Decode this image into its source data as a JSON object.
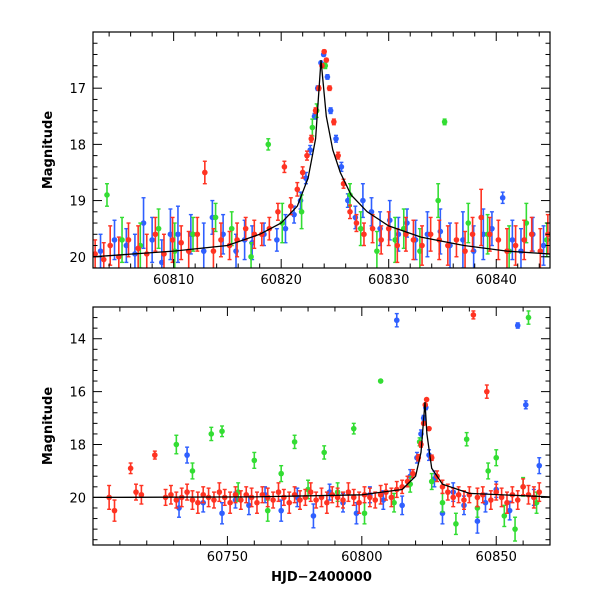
{
  "chart_data": [
    {
      "type": "scatter",
      "panel": "top",
      "xlabel": "",
      "ylabel": "Magnitude",
      "xlim": [
        60802.5,
        60845
      ],
      "ylim": [
        20.2,
        16.0
      ],
      "y_inverted": true,
      "x_ticks": [
        60810,
        60820,
        60830,
        60840
      ],
      "x_tick_labels": [
        "60810",
        "60820",
        "60830",
        "60840"
      ],
      "y_ticks": [
        17,
        18,
        19,
        20
      ],
      "y_tick_labels": [
        "17",
        "18",
        "19",
        "20"
      ],
      "model_curve": {
        "color": "#000000",
        "x": [
          60802.5,
          60810,
          60815,
          60818,
          60820,
          60821.5,
          60822.5,
          60823.2,
          60823.7,
          60824.2,
          60824.8,
          60825.5,
          60826.5,
          60828,
          60830,
          60833,
          60837,
          60841,
          60845
        ],
        "y": [
          20.0,
          19.9,
          19.8,
          19.6,
          19.4,
          19.1,
          18.6,
          17.9,
          16.5,
          17.5,
          18.1,
          18.5,
          18.9,
          19.2,
          19.45,
          19.65,
          19.8,
          19.9,
          19.95
        ]
      },
      "series": [
        {
          "color": "#2f5fff",
          "x": [
            60803.2,
            60804.5,
            60805.6,
            60806.4,
            60807.2,
            60808.0,
            60808.9,
            60809.7,
            60810.4,
            60811.6,
            60812.8,
            60813.6,
            60814.6,
            60815.8,
            60816.6,
            60817.3,
            60818.4,
            60819.6,
            60820.4,
            60821.2,
            60821.8,
            60822.3,
            60822.7,
            60823.1,
            60823.4,
            60823.7,
            60823.95,
            60824.3,
            60824.6,
            60825.1,
            60825.6,
            60826.2,
            60826.9,
            60827.6,
            60828.4,
            60829.2,
            60830.1,
            60830.9,
            60831.7,
            60832.5,
            60833.6,
            60834.8,
            60835.7,
            60836.9,
            60837.9,
            60838.8,
            60839.6,
            60840.6,
            60841.5,
            60842.3,
            60843.4,
            60844.4
          ],
          "y": [
            19.9,
            19.7,
            19.8,
            19.95,
            19.4,
            19.7,
            20.1,
            19.6,
            19.6,
            19.6,
            19.9,
            19.3,
            19.6,
            19.9,
            19.7,
            19.75,
            19.6,
            19.7,
            19.5,
            19.25,
            19.0,
            18.6,
            18.1,
            17.5,
            17.0,
            16.55,
            16.4,
            16.8,
            17.4,
            17.9,
            18.4,
            19.0,
            19.3,
            19.0,
            19.2,
            19.5,
            19.35,
            19.6,
            19.4,
            19.7,
            19.6,
            19.55,
            19.8,
            19.7,
            19.9,
            19.6,
            19.5,
            18.95,
            19.7,
            19.9,
            19.6,
            19.8
          ],
          "yerr": [
            0.3,
            0.35,
            0.3,
            0.35,
            0.45,
            0.4,
            0.4,
            0.45,
            0.5,
            0.35,
            0.5,
            0.3,
            0.35,
            0.3,
            0.35,
            0.3,
            0.2,
            0.2,
            0.25,
            0.15,
            0.15,
            0.1,
            0.08,
            0.05,
            0.04,
            0.03,
            0.03,
            0.04,
            0.05,
            0.06,
            0.08,
            0.12,
            0.2,
            0.3,
            0.25,
            0.3,
            0.35,
            0.3,
            0.25,
            0.35,
            0.4,
            0.4,
            0.4,
            0.5,
            0.45,
            0.45,
            0.3,
            0.1,
            0.35,
            0.4,
            0.3,
            0.35
          ]
        },
        {
          "color": "#33dd33",
          "x": [
            60803.8,
            60805.2,
            60806.9,
            60808.6,
            60810.1,
            60811.8,
            60813.9,
            60815.4,
            60817.2,
            60818.8,
            60820.1,
            60821.9,
            60822.9,
            60823.3,
            60824.1,
            60826.4,
            60827.4,
            60828.9,
            60830.6,
            60831.4,
            60832.9,
            60834.6,
            60835.2,
            60837.4,
            60839.2,
            60841.2,
            60842.8,
            60844.7
          ],
          "y": [
            18.9,
            19.7,
            19.8,
            19.5,
            19.9,
            19.6,
            19.3,
            19.5,
            20.0,
            18.0,
            19.4,
            19.2,
            17.7,
            17.4,
            16.6,
            18.9,
            19.5,
            19.9,
            19.7,
            19.5,
            19.9,
            19.0,
            17.6,
            19.4,
            19.6,
            19.9,
            19.4,
            19.7
          ],
          "yerr": [
            0.2,
            0.4,
            0.4,
            0.35,
            0.5,
            0.3,
            0.25,
            0.3,
            0.25,
            0.1,
            0.35,
            0.3,
            0.15,
            0.12,
            0.05,
            0.2,
            0.3,
            0.35,
            0.4,
            0.35,
            0.4,
            0.3,
            0.05,
            0.35,
            0.35,
            0.45,
            0.35,
            0.3
          ]
        },
        {
          "color": "#ff3322",
          "x": [
            60802.7,
            60803.5,
            60804.1,
            60804.9,
            60805.8,
            60806.7,
            60807.5,
            60808.3,
            60809.1,
            60809.9,
            60810.7,
            60811.4,
            60812.2,
            60812.9,
            60813.7,
            60814.4,
            60815.2,
            60815.9,
            60816.7,
            60817.5,
            60818.2,
            60818.9,
            60819.7,
            60820.3,
            60820.9,
            60821.5,
            60822.0,
            60822.4,
            60822.8,
            60823.2,
            60823.5,
            60823.8,
            60824.0,
            60824.2,
            60824.5,
            60824.9,
            60825.3,
            60825.8,
            60826.4,
            60827.0,
            60827.7,
            60828.5,
            60829.3,
            60830.0,
            60830.8,
            60831.6,
            60832.3,
            60833.1,
            60833.9,
            60834.7,
            60835.5,
            60836.3,
            60837.1,
            60837.8,
            60838.6,
            60839.4,
            60840.2,
            60841.0,
            60841.8,
            60842.6,
            60843.3,
            60844.1,
            60844.8
          ],
          "y": [
            19.95,
            20.05,
            19.8,
            20.0,
            19.7,
            19.85,
            19.95,
            19.6,
            19.95,
            19.7,
            19.75,
            19.9,
            19.6,
            18.5,
            19.9,
            19.7,
            19.8,
            19.7,
            19.5,
            19.6,
            19.6,
            19.5,
            19.2,
            18.4,
            19.1,
            18.8,
            18.5,
            18.2,
            17.9,
            17.4,
            17.0,
            16.6,
            16.35,
            16.5,
            17.0,
            17.6,
            18.2,
            18.7,
            19.2,
            19.4,
            19.6,
            19.5,
            19.7,
            19.5,
            19.8,
            19.6,
            19.7,
            19.8,
            19.6,
            19.7,
            19.8,
            19.7,
            19.9,
            19.6,
            19.3,
            19.6,
            19.7,
            19.9,
            19.8,
            19.7,
            19.6,
            19.9,
            19.6
          ],
          "yerr": [
            0.25,
            0.3,
            0.35,
            0.35,
            0.3,
            0.4,
            0.35,
            0.3,
            0.35,
            0.4,
            0.3,
            0.35,
            0.3,
            0.2,
            0.4,
            0.3,
            0.25,
            0.3,
            0.2,
            0.25,
            0.2,
            0.2,
            0.15,
            0.1,
            0.15,
            0.12,
            0.1,
            0.08,
            0.06,
            0.05,
            0.04,
            0.03,
            0.03,
            0.03,
            0.04,
            0.05,
            0.06,
            0.08,
            0.12,
            0.15,
            0.2,
            0.25,
            0.25,
            0.3,
            0.3,
            0.3,
            0.35,
            0.35,
            0.3,
            0.35,
            0.35,
            0.3,
            0.35,
            0.3,
            0.5,
            0.3,
            0.35,
            0.4,
            0.35,
            0.35,
            0.3,
            0.4,
            0.35
          ]
        }
      ]
    },
    {
      "type": "scatter",
      "panel": "bottom",
      "xlabel": "HJD−2400000",
      "ylabel": "Magnitude",
      "xlim": [
        60700,
        60870
      ],
      "ylim": [
        21.8,
        12.8
      ],
      "y_inverted": true,
      "x_ticks": [
        60750,
        60800,
        60850
      ],
      "x_tick_labels": [
        "60750",
        "60800",
        "60850"
      ],
      "y_ticks": [
        14,
        16,
        18,
        20
      ],
      "y_tick_labels": [
        "14",
        "16",
        "18",
        "20"
      ],
      "model_curve": {
        "color": "#000000",
        "x": [
          60700,
          60760,
          60800,
          60815,
          60820,
          60822,
          60823.5,
          60824.2,
          60826,
          60830,
          60840,
          60870
        ],
        "y": [
          20.0,
          19.98,
          19.9,
          19.7,
          19.2,
          18.3,
          16.4,
          17.6,
          18.9,
          19.5,
          19.85,
          19.98
        ]
      },
      "series": [
        {
          "color": "#2f5fff",
          "x": [
            60732,
            60735,
            60741,
            60748,
            60753,
            60758,
            60764,
            60770,
            60776,
            60782,
            60788,
            60793,
            60798,
            60803,
            60808,
            60813,
            60815,
            60818,
            60820.5,
            60822,
            60823,
            60823.8,
            60825,
            60827,
            60830,
            60834,
            60838,
            60843,
            60846,
            60850,
            60855,
            60858,
            60861,
            60864,
            60866
          ],
          "y": [
            20.4,
            18.4,
            20.2,
            20.6,
            20.1,
            20.3,
            19.9,
            20.5,
            20.0,
            20.7,
            19.8,
            20.2,
            20.6,
            19.9,
            20.1,
            13.3,
            20.3,
            19.2,
            18.5,
            17.6,
            17.0,
            16.6,
            18.4,
            19.3,
            20.6,
            19.8,
            20.3,
            20.9,
            20.2,
            19.7,
            20.5,
            13.5,
            16.5,
            20.0,
            18.8
          ],
          "yerr": [
            0.35,
            0.3,
            0.35,
            0.4,
            0.3,
            0.35,
            0.3,
            0.4,
            0.35,
            0.45,
            0.3,
            0.35,
            0.4,
            0.3,
            0.35,
            0.25,
            0.35,
            0.25,
            0.2,
            0.15,
            0.1,
            0.08,
            0.2,
            0.3,
            0.4,
            0.35,
            0.35,
            0.45,
            0.35,
            0.3,
            0.35,
            0.1,
            0.15,
            0.3,
            0.3
          ]
        },
        {
          "color": "#33dd33",
          "x": [
            60731,
            60737,
            60744,
            60748,
            60754,
            60760,
            60765,
            60770,
            60775,
            60780,
            60786,
            60791,
            60797,
            60801,
            60807,
            60812,
            60818,
            60821.5,
            60826,
            60830,
            60835,
            60839,
            60843,
            60847,
            60850,
            60853,
            60857,
            60860,
            60862,
            60865
          ],
          "y": [
            18.0,
            19.0,
            17.6,
            17.5,
            19.8,
            18.6,
            20.5,
            19.1,
            17.9,
            19.7,
            18.3,
            19.8,
            17.4,
            20.6,
            15.6,
            20.2,
            19.5,
            17.9,
            19.4,
            20.2,
            21.0,
            17.8,
            20.4,
            19.0,
            18.5,
            20.7,
            21.2,
            19.6,
            13.2,
            20.2
          ],
          "yerr": [
            0.35,
            0.3,
            0.25,
            0.2,
            0.35,
            0.3,
            0.4,
            0.3,
            0.25,
            0.35,
            0.25,
            0.35,
            0.2,
            0.4,
            0.05,
            0.35,
            0.3,
            0.15,
            0.3,
            0.35,
            0.4,
            0.25,
            0.35,
            0.3,
            0.3,
            0.4,
            0.45,
            0.35,
            0.25,
            0.4
          ]
        },
        {
          "color": "#ff3322",
          "x": [
            60706,
            60708,
            60714,
            60716,
            60718,
            60723,
            60727,
            60729,
            60731,
            60733,
            60735,
            60737,
            60739,
            60741,
            60743,
            60745,
            60747,
            60749,
            60751,
            60753,
            60755,
            60757,
            60759,
            60761,
            60763,
            60765,
            60767,
            60769,
            60771,
            60773,
            60775,
            60777,
            60779,
            60781,
            60783,
            60785,
            60787,
            60789,
            60791,
            60793,
            60795,
            60797,
            60799,
            60801,
            60803,
            60805,
            60807,
            60809,
            60811,
            60813,
            60815,
            60817,
            60819,
            60821,
            60822,
            60823,
            60823.6,
            60824.1,
            60825,
            60826,
            60828,
            60830,
            60832,
            60834,
            60836,
            60838,
            60840,
            60841.5,
            60843,
            60845,
            60846.5,
            60848,
            60850,
            60852,
            60854,
            60856,
            60858,
            60860,
            60862,
            60864,
            60866
          ],
          "y": [
            20.0,
            20.5,
            18.9,
            19.8,
            19.9,
            18.4,
            20.0,
            19.9,
            20.1,
            20.0,
            19.8,
            20.1,
            20.2,
            19.9,
            20.0,
            20.1,
            19.8,
            20.0,
            20.2,
            19.9,
            20.1,
            19.9,
            20.0,
            20.2,
            19.9,
            20.0,
            20.1,
            19.8,
            20.0,
            20.2,
            19.9,
            20.1,
            20.0,
            19.8,
            20.1,
            20.0,
            20.2,
            19.9,
            20.0,
            20.1,
            19.8,
            20.0,
            20.2,
            19.9,
            20.0,
            20.1,
            19.9,
            19.8,
            20.0,
            19.7,
            19.6,
            19.4,
            19.1,
            18.5,
            18.0,
            17.2,
            16.5,
            16.3,
            17.4,
            18.5,
            19.2,
            19.6,
            19.8,
            20.0,
            19.9,
            20.1,
            19.9,
            13.1,
            20.0,
            19.9,
            16.0,
            20.1,
            19.8,
            20.0,
            20.2,
            19.9,
            20.1,
            19.6,
            19.9,
            20.0,
            19.8
          ],
          "yerr": [
            0.45,
            0.4,
            0.2,
            0.3,
            0.35,
            0.15,
            0.3,
            0.35,
            0.3,
            0.35,
            0.3,
            0.35,
            0.4,
            0.3,
            0.35,
            0.3,
            0.35,
            0.3,
            0.4,
            0.3,
            0.35,
            0.3,
            0.35,
            0.4,
            0.3,
            0.35,
            0.3,
            0.35,
            0.3,
            0.4,
            0.3,
            0.35,
            0.3,
            0.35,
            0.3,
            0.35,
            0.4,
            0.3,
            0.35,
            0.3,
            0.35,
            0.3,
            0.4,
            0.3,
            0.35,
            0.3,
            0.35,
            0.3,
            0.35,
            0.3,
            0.25,
            0.2,
            0.15,
            0.12,
            0.1,
            0.06,
            0.04,
            0.03,
            0.05,
            0.1,
            0.2,
            0.25,
            0.3,
            0.35,
            0.3,
            0.35,
            0.3,
            0.15,
            0.35,
            0.3,
            0.25,
            0.35,
            0.3,
            0.35,
            0.4,
            0.3,
            0.35,
            0.3,
            0.35,
            0.4,
            0.35
          ]
        }
      ]
    }
  ]
}
